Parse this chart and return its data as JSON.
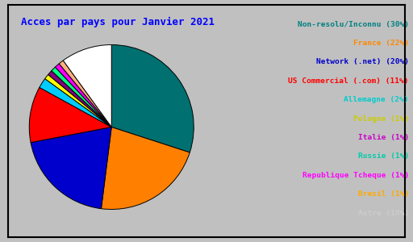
{
  "title": "Acces par pays pour Janvier 2021",
  "title_color": "#0000ff",
  "background_color": "#c0c0c0",
  "border_color": "#000000",
  "slices": [
    {
      "label": "Non-resolu/Inconnu",
      "pct": 30,
      "color": "#007070"
    },
    {
      "label": "France",
      "pct": 22,
      "color": "#ff8000"
    },
    {
      "label": "Network (.net)",
      "pct": 20,
      "color": "#0000cc"
    },
    {
      "label": "US Commercial (.com)",
      "pct": 11,
      "color": "#ff0000"
    },
    {
      "label": "Allemagne",
      "pct": 2,
      "color": "#00ccff"
    },
    {
      "label": "Pologne",
      "pct": 1,
      "color": "#ffff00"
    },
    {
      "label": "Italie",
      "pct": 1,
      "color": "#800080"
    },
    {
      "label": "Russie",
      "pct": 1,
      "color": "#00ff80"
    },
    {
      "label": "Republique Tcheque",
      "pct": 1,
      "color": "#ff00ff"
    },
    {
      "label": "Bresil",
      "pct": 1,
      "color": "#ffb080"
    },
    {
      "label": "Autre",
      "pct": 10,
      "color": "#ffffff"
    }
  ],
  "label_colors": [
    "#008080",
    "#ff8800",
    "#0000cc",
    "#ff0000",
    "#00cccc",
    "#ffff00",
    "#800080",
    "#00cc88",
    "#ff00ff",
    "#ffaa44",
    "#ffffff"
  ],
  "pct_colors": [
    "#ff0000",
    "#ff0000",
    "#ff0000",
    "#ff0000",
    "#00cccc",
    "#ffff00",
    "#ff00ff",
    "#00cc88",
    "#ff00ff",
    "#ffaa44",
    "#ffffff"
  ]
}
